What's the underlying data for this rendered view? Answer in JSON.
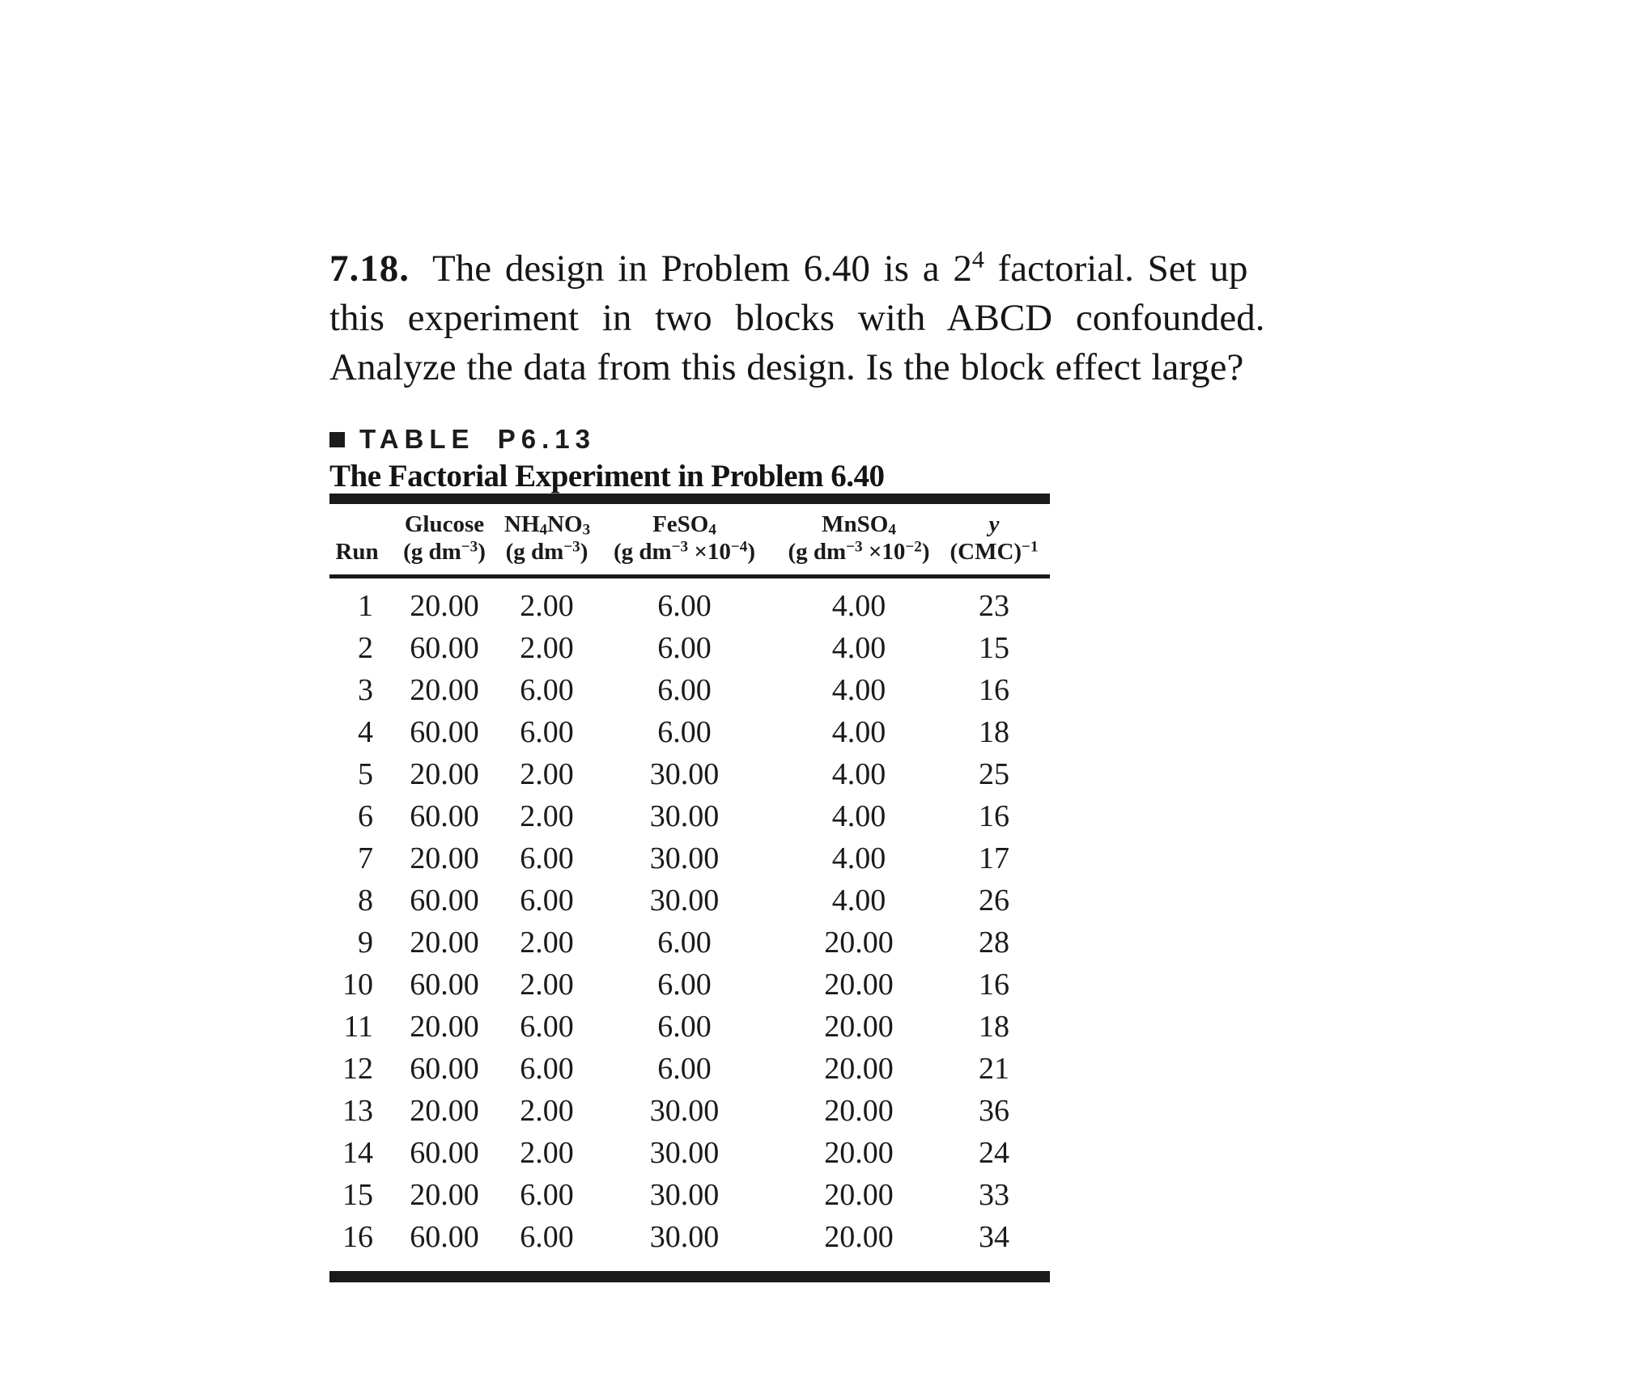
{
  "problem": {
    "number": "7.18.",
    "line1_pre": "The design in Problem 6.40 is a 2",
    "line1_exponent": "4",
    "line1_post": " factorial. Set up",
    "line2": "this experiment in two blocks with ABCD confounded.",
    "line3": "Analyze the data from this design. Is the block effect large?"
  },
  "table_heading": {
    "label": "TABLE P6.13",
    "title": "The Factorial Experiment in Problem 6.40"
  },
  "table": {
    "columns": {
      "run": {
        "label": "Run"
      },
      "glucose": {
        "name": "Glucose",
        "unit_pre": "(g dm",
        "unit_sup": "−3",
        "unit_post": ")"
      },
      "nh4no3": {
        "name_p1": "NH",
        "name_sub1": "4",
        "name_p2": "NO",
        "name_sub2": "3",
        "unit_pre": "(g dm",
        "unit_sup": "−3",
        "unit_post": ")"
      },
      "feso4": {
        "name_p1": "FeSO",
        "name_sub1": "4",
        "unit_pre": "(g dm",
        "unit_sup1": "−3",
        "unit_mid": " ×10",
        "unit_sup2": "−4",
        "unit_post": ")"
      },
      "mnso4": {
        "name_p1": "MnSO",
        "name_sub1": "4",
        "unit_pre": "(g dm",
        "unit_sup1": "−3",
        "unit_mid": " ×10",
        "unit_sup2": "−2",
        "unit_post": ")"
      },
      "y": {
        "name": "y",
        "unit_pre": "(CMC)",
        "unit_sup": "−1"
      }
    },
    "rows": [
      [
        "1",
        "20.00",
        "2.00",
        "6.00",
        "4.00",
        "23"
      ],
      [
        "2",
        "60.00",
        "2.00",
        "6.00",
        "4.00",
        "15"
      ],
      [
        "3",
        "20.00",
        "6.00",
        "6.00",
        "4.00",
        "16"
      ],
      [
        "4",
        "60.00",
        "6.00",
        "6.00",
        "4.00",
        "18"
      ],
      [
        "5",
        "20.00",
        "2.00",
        "30.00",
        "4.00",
        "25"
      ],
      [
        "6",
        "60.00",
        "2.00",
        "30.00",
        "4.00",
        "16"
      ],
      [
        "7",
        "20.00",
        "6.00",
        "30.00",
        "4.00",
        "17"
      ],
      [
        "8",
        "60.00",
        "6.00",
        "30.00",
        "4.00",
        "26"
      ],
      [
        "9",
        "20.00",
        "2.00",
        "6.00",
        "20.00",
        "28"
      ],
      [
        "10",
        "60.00",
        "2.00",
        "6.00",
        "20.00",
        "16"
      ],
      [
        "11",
        "20.00",
        "6.00",
        "6.00",
        "20.00",
        "18"
      ],
      [
        "12",
        "60.00",
        "6.00",
        "6.00",
        "20.00",
        "21"
      ],
      [
        "13",
        "20.00",
        "2.00",
        "30.00",
        "20.00",
        "36"
      ],
      [
        "14",
        "60.00",
        "2.00",
        "30.00",
        "20.00",
        "24"
      ],
      [
        "15",
        "20.00",
        "6.00",
        "30.00",
        "20.00",
        "33"
      ],
      [
        "16",
        "60.00",
        "6.00",
        "30.00",
        "20.00",
        "34"
      ]
    ]
  }
}
